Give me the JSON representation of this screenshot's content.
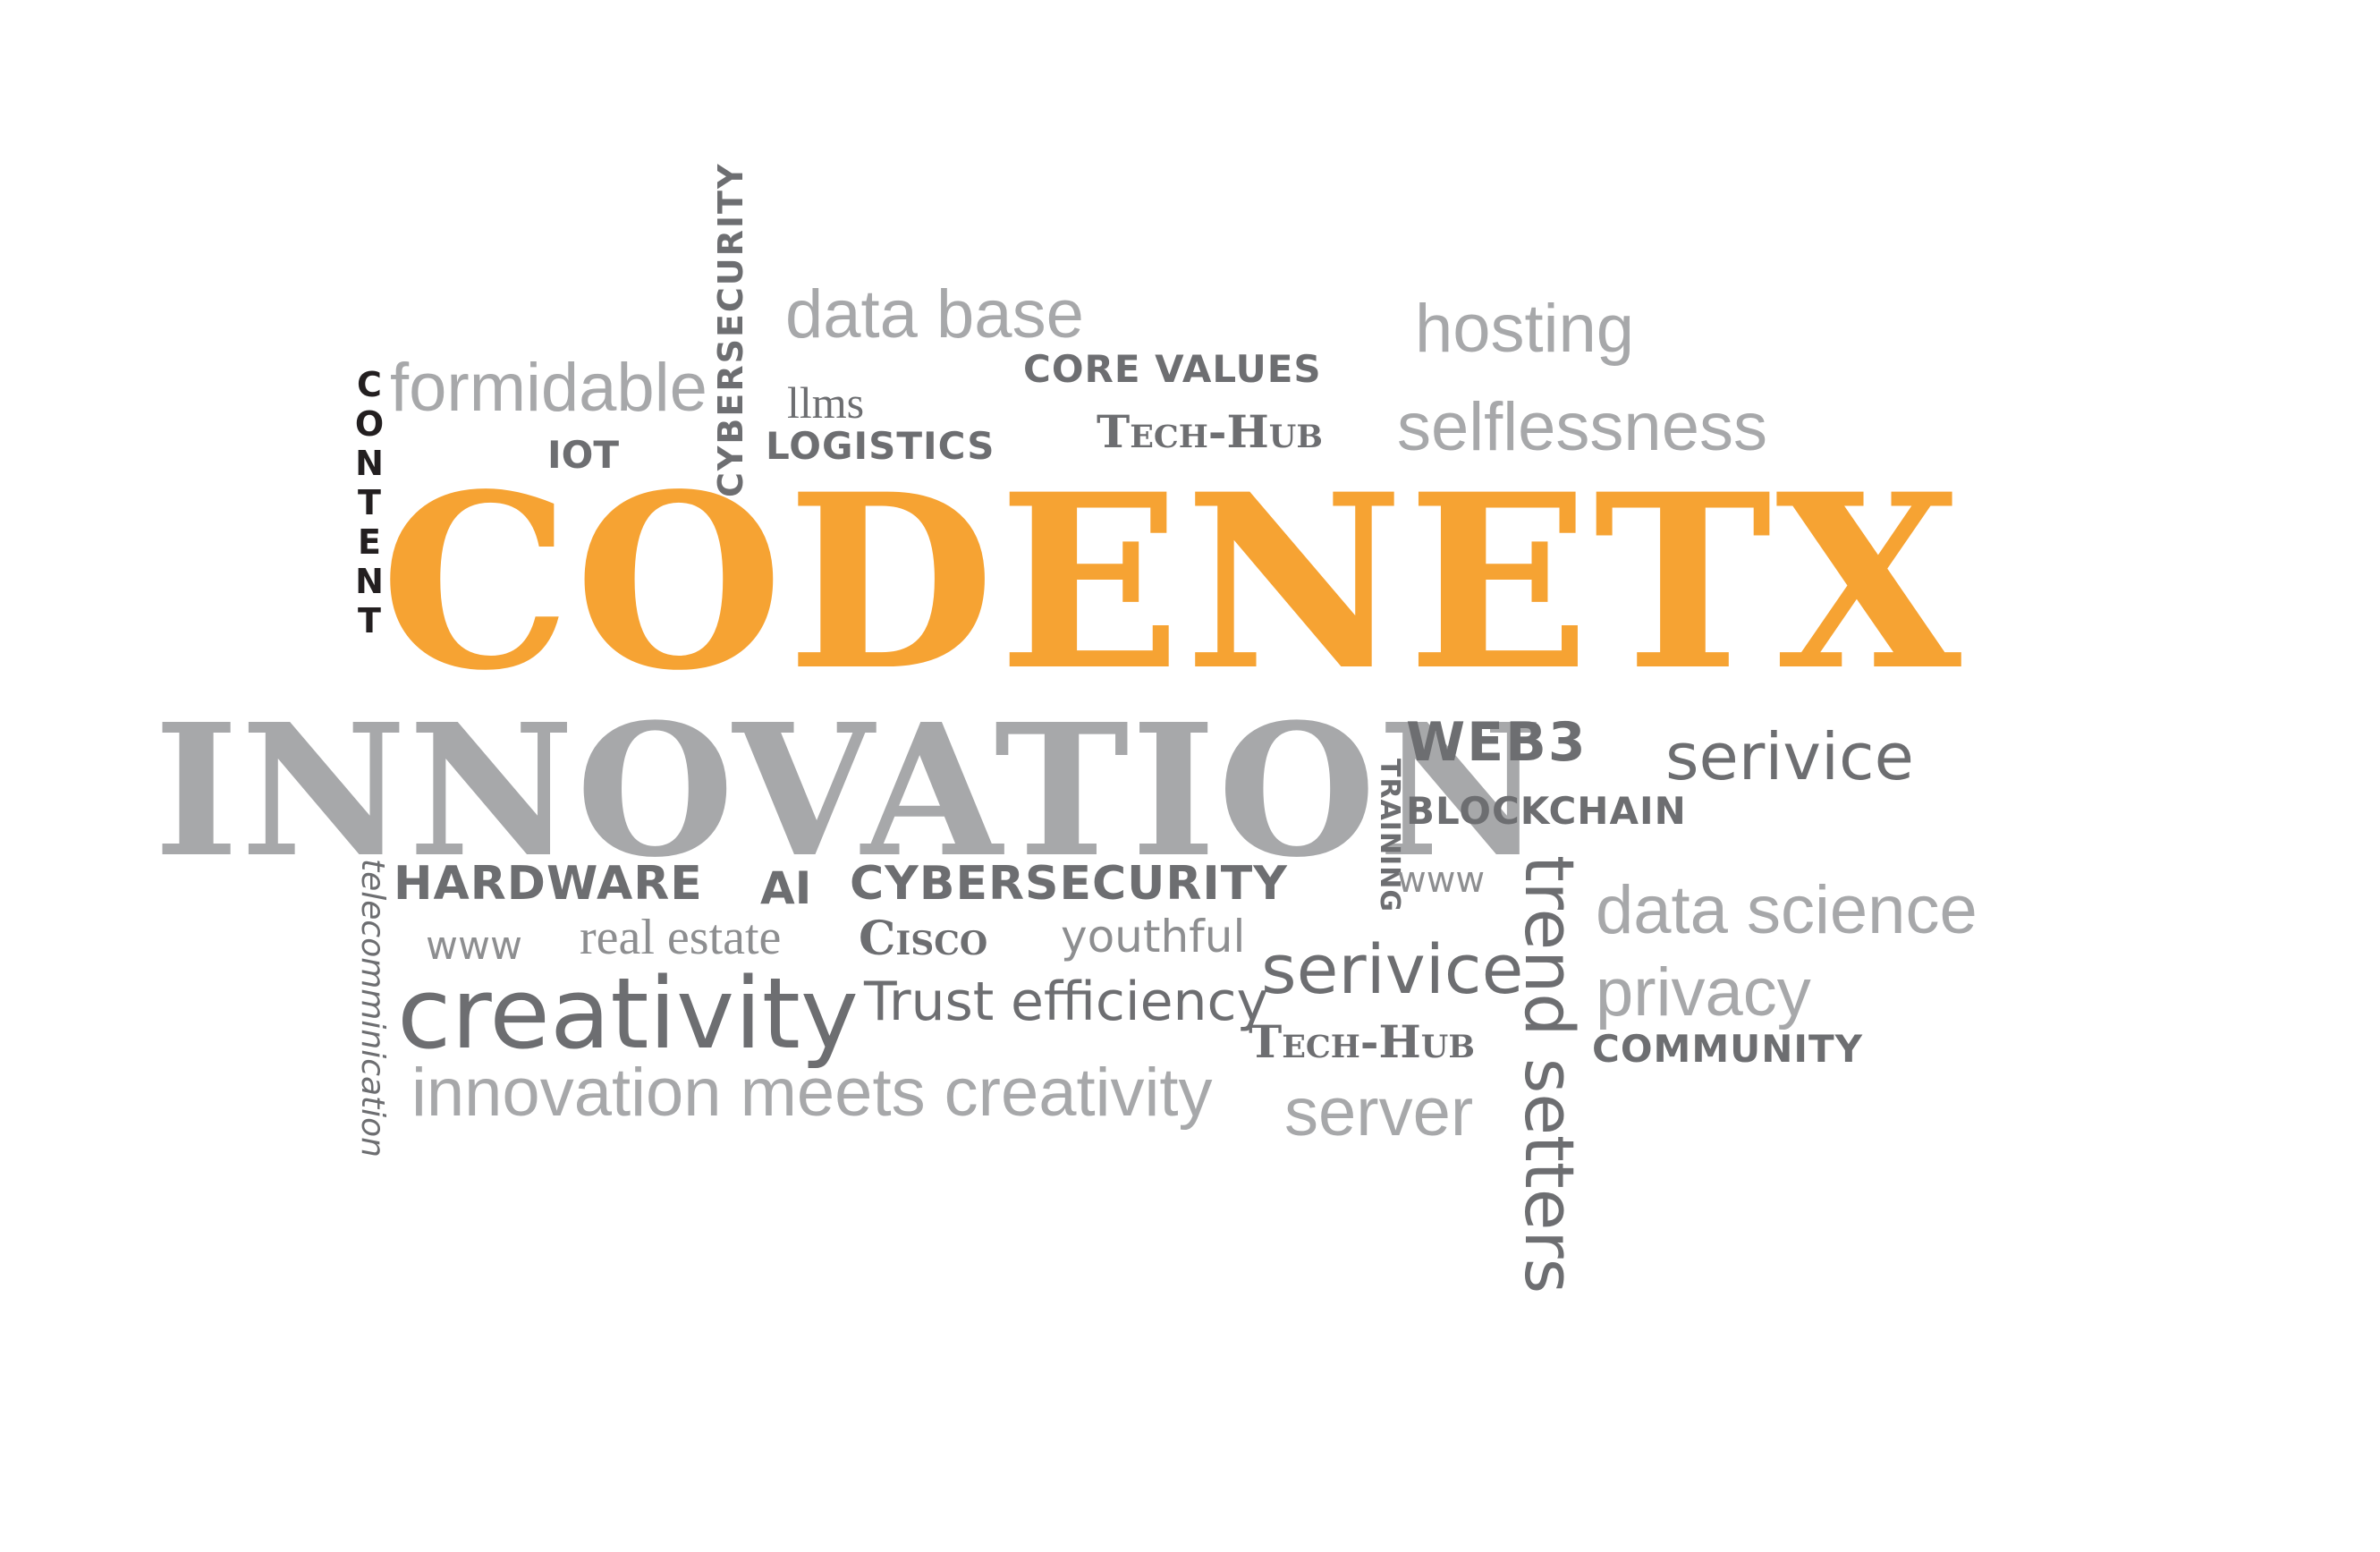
{
  "palette": {
    "orange": "#F6A333",
    "light_gray": "#A7A8AA",
    "mid_gray": "#8D8E90",
    "dark_gray": "#6D6E71",
    "black": "#231F20"
  },
  "words": {
    "codenetx": "CODENETX",
    "innovation": "INNOVATION",
    "content": "CONTENT",
    "formidable": "formidable",
    "cybersecurity_vertical": "CYBERSECURITY",
    "data_base": "data base",
    "llms": "llms",
    "core_values": "CORE VALUES",
    "iot": "IOT",
    "logistics": "LOGISTICS",
    "tech_hub_top": "Tech-Hub",
    "hosting": "hosting",
    "selflessness": "selflessness",
    "web3": "WEB3",
    "serivice_right": "serivice",
    "training": "TRAINING",
    "blockchain": "BLOCKCHAIN",
    "www_right": "www",
    "trend_setters": "trend setters",
    "data_science": "data science",
    "privacy": "privacy",
    "community": "COMMUNITY",
    "telecommunication": "telecomminication",
    "hardware": "HARDWARE",
    "ai": "AI",
    "cybersecurity_row": "CYBERSECURITY",
    "www_left": "www",
    "real_estate": "real estate",
    "cisco": "Cisco",
    "youthful": "youthful",
    "creativity": "creativity",
    "trust": "Trust",
    "efficiency": "efficiency",
    "serivice_center": "serivice",
    "tech_hub_bottom": "Tech-Hub",
    "innovation_meets_creativity": "innovation meets creativity",
    "server": "server"
  }
}
